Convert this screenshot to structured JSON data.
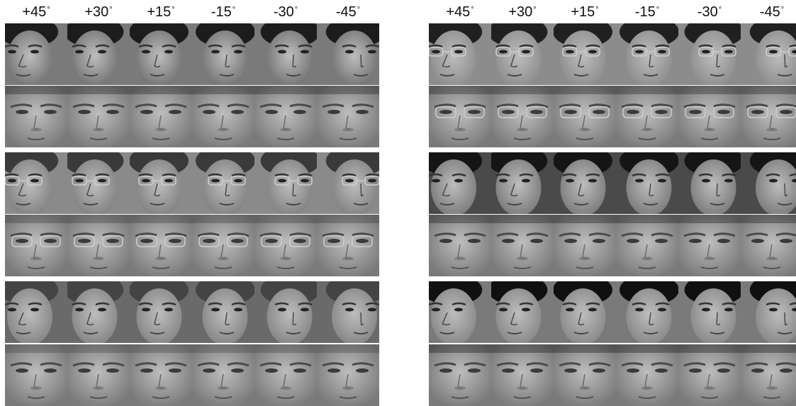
{
  "angles": [
    "+45",
    "+30",
    "+15",
    "-15",
    "-30",
    "-45"
  ],
  "degree_symbol": "°",
  "panels": [
    {
      "id": "left",
      "subjects": [
        {
          "id": "subject-1",
          "hair": "#1c1c1c",
          "skin": "#6e6e6e",
          "glasses": false,
          "bg": "#7a7a7a"
        },
        {
          "id": "subject-2",
          "hair": "#3a3a3a",
          "skin": "#7d7d7d",
          "glasses": true,
          "bg": "#8a8a8a"
        },
        {
          "id": "subject-3",
          "hair": "#444444",
          "skin": "#828282",
          "glasses": false,
          "bg": "#6a6a6a"
        }
      ]
    },
    {
      "id": "right",
      "subjects": [
        {
          "id": "subject-4",
          "hair": "#202020",
          "skin": "#8a8a8a",
          "glasses": true,
          "bg": "#8c8c8c"
        },
        {
          "id": "subject-5",
          "hair": "#151515",
          "skin": "#777777",
          "glasses": false,
          "bg": "#4a4a4a"
        },
        {
          "id": "subject-6",
          "hair": "#101010",
          "skin": "#858585",
          "glasses": false,
          "bg": "#7a7a7a"
        }
      ]
    }
  ],
  "row_types": [
    "pose-input",
    "frontalized-output"
  ]
}
